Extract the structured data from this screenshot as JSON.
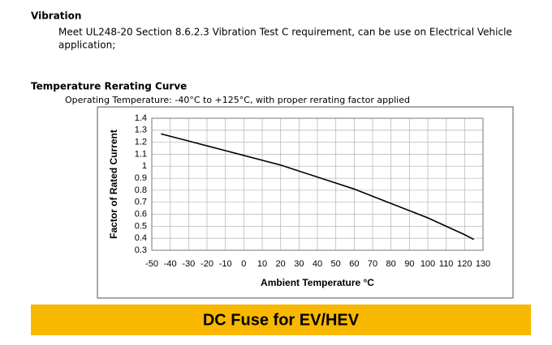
{
  "section": {
    "heading": "Vibration",
    "lines": [
      "Meet UL248-20 Section 8.6.2.3 Vibration Test C requirement, can be use on Electrical Vehicle",
      "application;"
    ]
  },
  "chart_data": {
    "type": "line",
    "title": "Temperature Rerating Curve",
    "subtitle": "Operating Temperature:  -40°C to +125°C, with proper rerating factor applied",
    "xlabel": "Ambient Temperature °C",
    "ylabel": "Factor of Rated Current",
    "x": [
      -45,
      -40,
      -30,
      -20,
      -10,
      0,
      10,
      20,
      30,
      40,
      50,
      60,
      70,
      80,
      90,
      100,
      110,
      120,
      125
    ],
    "series": [
      {
        "color": "#000000",
        "values": [
          1.27,
          1.25,
          1.21,
          1.17,
          1.13,
          1.09,
          1.05,
          1.01,
          0.96,
          0.91,
          0.86,
          0.81,
          0.75,
          0.69,
          0.63,
          0.57,
          0.5,
          0.43,
          0.39
        ]
      }
    ],
    "xlim": [
      -50,
      130
    ],
    "ylim": [
      0.3,
      1.4
    ],
    "xticks": [
      -50,
      -40,
      -30,
      -20,
      -10,
      0,
      10,
      20,
      30,
      40,
      50,
      60,
      70,
      80,
      90,
      100,
      110,
      120,
      130
    ],
    "yticks": [
      0.3,
      0.4,
      0.5,
      0.6,
      0.7,
      0.8,
      0.9,
      1,
      1.1,
      1.2,
      1.3,
      1.4
    ],
    "grid": true
  },
  "banner": {
    "text": "DC Fuse for EV/HEV"
  }
}
